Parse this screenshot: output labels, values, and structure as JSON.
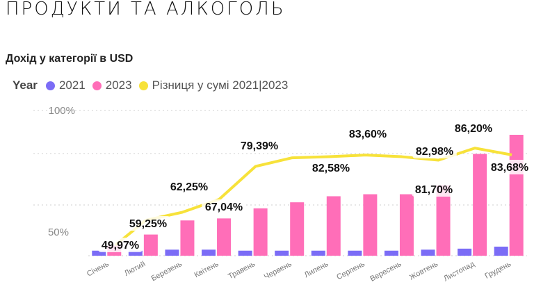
{
  "page": {
    "title": "ПРОДУКТИ ТА АЛКОГОЛЬ"
  },
  "chart_data": {
    "type": "bar",
    "title": "Дохід у категорії в USD",
    "legend_title": "Year",
    "legend_position": "top-left",
    "grid": true,
    "categories": [
      "Січень",
      "Лютий",
      "Березень",
      "Квітень",
      "Травень",
      "Червень",
      "Липень",
      "Серпень",
      "Вересень",
      "Жовтень",
      "Листопад",
      "Грудень"
    ],
    "series": [
      {
        "name": "2021",
        "type": "bar",
        "color": "#7b6cf6",
        "values": [
          5,
          5,
          6,
          6,
          5,
          5,
          5,
          5,
          5,
          6,
          7,
          9
        ]
      },
      {
        "name": "2023",
        "type": "bar",
        "color": "#ff6eb8",
        "values": [
          10,
          21,
          35,
          37,
          47,
          53,
          59,
          61,
          61,
          70,
          101,
          120
        ]
      }
    ],
    "line": {
      "name": "Різниця у сумі 2021|2023",
      "color": "#f7e23a",
      "values": [
        49.97,
        59.25,
        62.25,
        67.04,
        79.39,
        82.58,
        82.98,
        83.6,
        82.98,
        81.7,
        86.2,
        83.68
      ],
      "labels": [
        "49,97%",
        "59,25%",
        "62,25%",
        "67,04%",
        "79,39%",
        "82,58%",
        "",
        "83,60%",
        "82,98%",
        "81,70%",
        "86,20%",
        "83,68%"
      ],
      "ylim": [
        46,
        100
      ]
    },
    "y_ticks": [
      "100%",
      "50%"
    ],
    "ylim": [
      0,
      120
    ]
  }
}
